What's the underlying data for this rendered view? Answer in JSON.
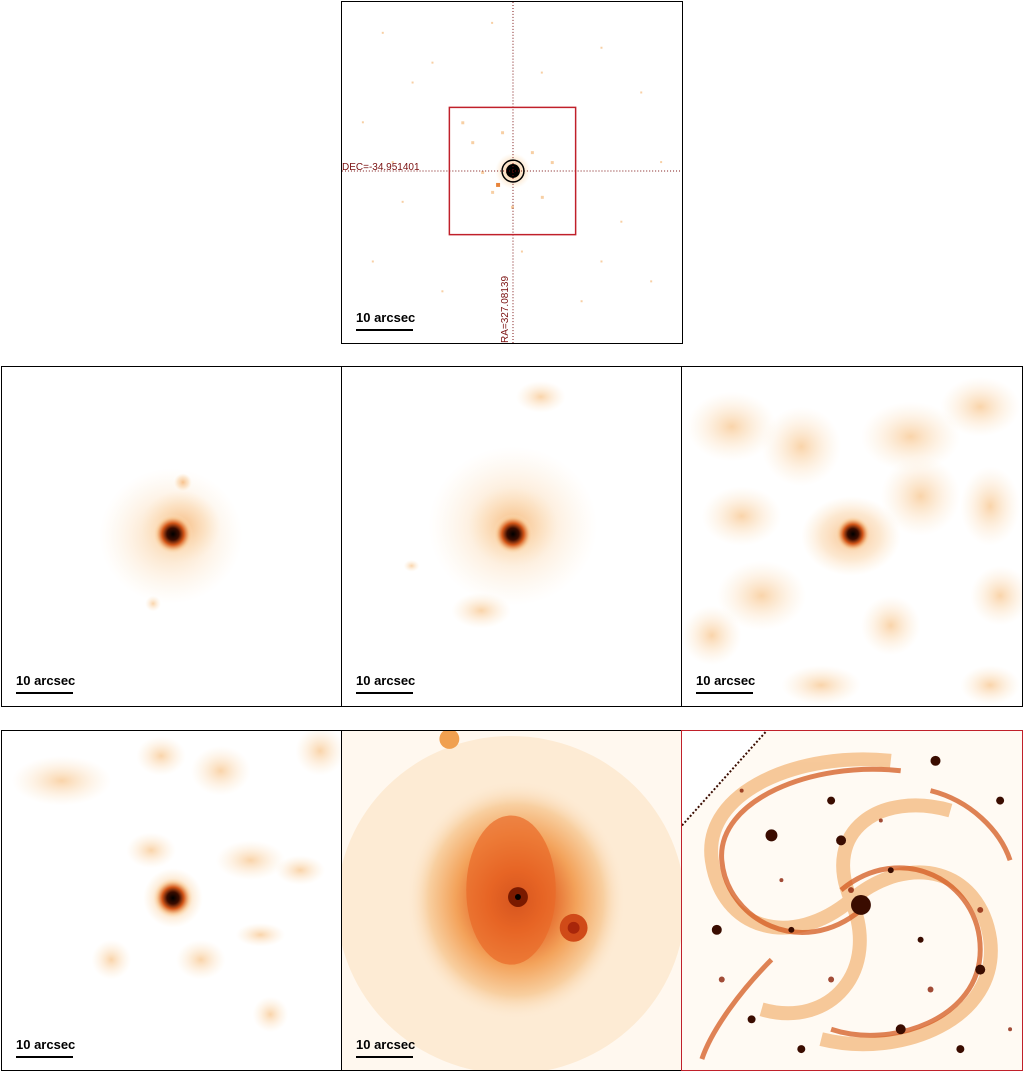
{
  "panels": {
    "top": {
      "scale_label": "10 arcsec",
      "dec_label": "DEC=-34.951401",
      "ra_label": "RA=327.08139"
    },
    "middle": [
      {
        "scale_label": "10 arcsec"
      },
      {
        "scale_label": "10 arcsec"
      },
      {
        "scale_label": "10 arcsec"
      }
    ],
    "bottom": [
      {
        "scale_label": "10 arcsec"
      },
      {
        "scale_label": "10 arcsec"
      },
      {
        "scale_label": ""
      }
    ]
  },
  "colors": {
    "background": "#ffffff",
    "border": "#000000",
    "crosshair": "#7a1010",
    "region_box": "#c0202a",
    "heat_low": "#fde6c8",
    "heat_mid": "#f08a3c",
    "heat_high": "#2a0a00"
  }
}
